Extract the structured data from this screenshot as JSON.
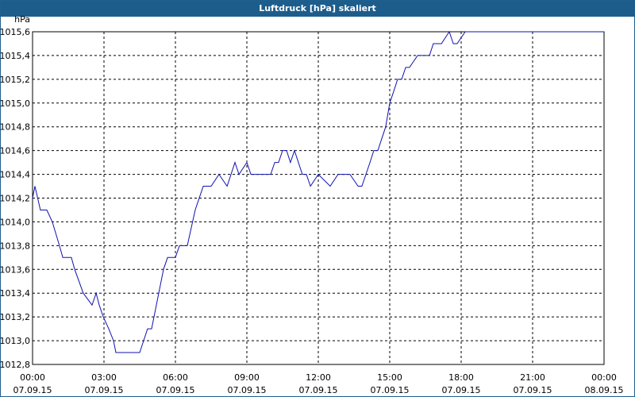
{
  "window": {
    "title": "Luftdruck [hPa] skaliert"
  },
  "colors": {
    "titlebar": "#1d5d8c",
    "line": "#1010b0",
    "grid": "#000000"
  },
  "chart_data": {
    "type": "line",
    "title": "Luftdruck [hPa] skaliert",
    "ylabel": "hPa",
    "xlabel": "",
    "ylim": [
      1012.8,
      1015.6
    ],
    "xlim": [
      0,
      24
    ],
    "grid": true,
    "y_ticks": [
      "1012,8",
      "1013,0",
      "1013,2",
      "1013,4",
      "1013,6",
      "1013,8",
      "1014,0",
      "1014,2",
      "1014,4",
      "1014,6",
      "1014,8",
      "1015,0",
      "1015,2",
      "1015,4",
      "1015,6"
    ],
    "x_ticks": [
      {
        "time": "00:00",
        "date": "07.09.15"
      },
      {
        "time": "03:00",
        "date": "07.09.15"
      },
      {
        "time": "06:00",
        "date": "07.09.15"
      },
      {
        "time": "09:00",
        "date": "07.09.15"
      },
      {
        "time": "12:00",
        "date": "07.09.15"
      },
      {
        "time": "15:00",
        "date": "07.09.15"
      },
      {
        "time": "18:00",
        "date": "07.09.15"
      },
      {
        "time": "21:00",
        "date": "07.09.15"
      },
      {
        "time": "00:00",
        "date": "08.09.15"
      }
    ],
    "series": [
      {
        "x": [
          0.0,
          0.1,
          0.33,
          0.6,
          0.83,
          1.13,
          1.27,
          1.63,
          1.77,
          2.13,
          2.5,
          2.67,
          2.8,
          2.97,
          3.2,
          3.4,
          3.5,
          3.7,
          3.83,
          3.97,
          4.2,
          4.33,
          4.5,
          4.83,
          5.0,
          5.5,
          5.67,
          6.0,
          6.17,
          6.5,
          6.83,
          7.17,
          7.5,
          7.83,
          8.17,
          8.5,
          8.67,
          9.0,
          9.17,
          9.5,
          9.67,
          10.0,
          10.17,
          10.33,
          10.5,
          10.67,
          10.83,
          11.0,
          11.33,
          11.5,
          11.67,
          12.0,
          12.5,
          12.83,
          13.17,
          13.33,
          13.67,
          13.83,
          14.0,
          14.17,
          14.33,
          14.5,
          14.83,
          15.0,
          15.17,
          15.33,
          15.5,
          15.67,
          15.83,
          16.17,
          16.67,
          16.83,
          17.17,
          17.5,
          17.67,
          17.83,
          18.17,
          18.33,
          18.67,
          19.0,
          19.33,
          19.67,
          19.83,
          20.0,
          20.17,
          20.33,
          20.5,
          20.67,
          20.83,
          21.0,
          21.33,
          21.83,
          22.17,
          22.67,
          22.83,
          23.0,
          23.17,
          23.33,
          23.5,
          23.67,
          23.83,
          24.0
        ],
        "y": [
          1014.2,
          1014.3,
          1014.1,
          1014.1,
          1014.0,
          1013.8,
          1013.7,
          1013.7,
          1013.6,
          1013.4,
          1013.3,
          1013.4,
          1013.3,
          1013.2,
          1013.1,
          1013.0,
          1012.9,
          1012.9,
          1012.9,
          1012.9,
          1012.9,
          1012.9,
          1012.9,
          1013.1,
          1013.1,
          1013.6,
          1013.7,
          1013.7,
          1013.8,
          1013.8,
          1014.1,
          1014.3,
          1014.3,
          1014.4,
          1014.3,
          1014.5,
          1014.4,
          1014.5,
          1014.4,
          1014.4,
          1014.4,
          1014.4,
          1014.5,
          1014.5,
          1014.6,
          1014.6,
          1014.5,
          1014.6,
          1014.4,
          1014.4,
          1014.3,
          1014.4,
          1014.3,
          1014.4,
          1014.4,
          1014.4,
          1014.3,
          1014.3,
          1014.4,
          1014.5,
          1014.6,
          1014.6,
          1014.8,
          1015.0,
          1015.1,
          1015.2,
          1015.2,
          1015.3,
          1015.3,
          1015.4,
          1015.4,
          1015.5,
          1015.5,
          1015.6,
          1015.5,
          1015.5,
          1015.6,
          1015.6,
          1015.6,
          1015.6,
          1015.6,
          1015.6,
          1015.6,
          1015.6,
          1015.6,
          1015.6,
          1015.6,
          1015.6,
          1015.6,
          1015.6,
          1015.6,
          1015.6,
          1015.6,
          1015.6,
          1015.6,
          1015.6,
          1015.6,
          1015.6,
          1015.6,
          1015.6,
          1015.6,
          1015.6
        ]
      }
    ]
  }
}
